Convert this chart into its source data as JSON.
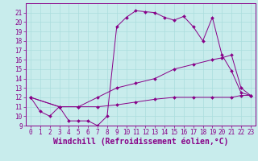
{
  "title": "",
  "xlabel": "Windchill (Refroidissement éolien,°C)",
  "ylabel": "",
  "xlim": [
    -0.5,
    23.5
  ],
  "ylim": [
    9,
    22
  ],
  "xticks": [
    0,
    1,
    2,
    3,
    4,
    5,
    6,
    7,
    8,
    9,
    10,
    11,
    12,
    13,
    14,
    15,
    16,
    17,
    18,
    19,
    20,
    21,
    22,
    23
  ],
  "yticks": [
    9,
    10,
    11,
    12,
    13,
    14,
    15,
    16,
    17,
    18,
    19,
    20,
    21
  ],
  "background_color": "#c8ecec",
  "grid_color": "#aadddd",
  "line_color": "#880088",
  "line1_x": [
    0,
    1,
    2,
    3,
    4,
    5,
    6,
    7,
    8,
    9,
    10,
    11,
    12,
    13,
    14,
    15,
    16,
    17,
    18,
    19,
    20,
    21,
    22,
    23
  ],
  "line1_y": [
    12,
    10.5,
    10,
    11,
    9.5,
    9.5,
    9.5,
    9.0,
    10,
    19.5,
    20.5,
    21.2,
    21.1,
    21.0,
    20.5,
    20.2,
    20.6,
    19.5,
    18.0,
    20.5,
    16.5,
    14.8,
    12.5,
    12.2
  ],
  "line2_x": [
    0,
    3,
    5,
    7,
    9,
    11,
    13,
    15,
    17,
    19,
    20,
    21,
    22,
    23
  ],
  "line2_y": [
    12,
    11,
    11,
    12,
    13,
    13.5,
    14,
    15,
    15.5,
    16,
    16.2,
    16.5,
    13,
    12.2
  ],
  "line3_x": [
    0,
    3,
    5,
    7,
    9,
    11,
    13,
    15,
    17,
    19,
    21,
    22,
    23
  ],
  "line3_y": [
    12,
    11,
    11,
    11,
    11.2,
    11.5,
    11.8,
    12,
    12,
    12,
    12,
    12.2,
    12.2
  ],
  "tick_fontsize": 5.5,
  "label_fontsize": 7
}
